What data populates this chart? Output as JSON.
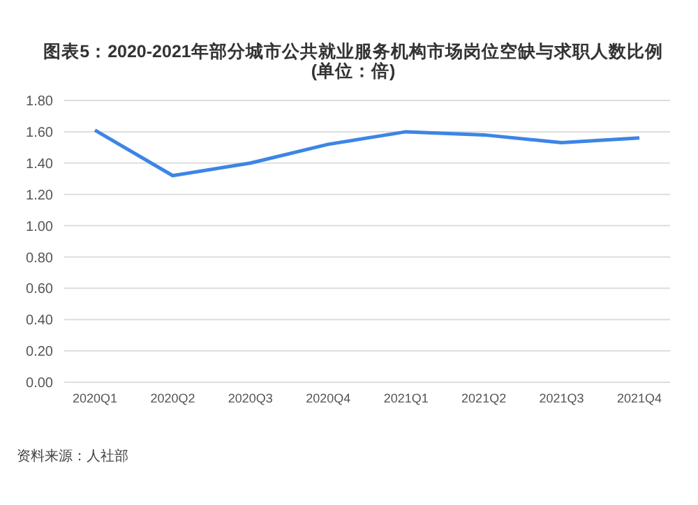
{
  "chart_data": {
    "type": "line",
    "title": "图表5：2020-2021年部分城市公共就业服务机构市场岗位空缺与求职人数比例(单位：倍)",
    "categories": [
      "2020Q1",
      "2020Q2",
      "2020Q3",
      "2020Q4",
      "2021Q1",
      "2021Q2",
      "2021Q3",
      "2021Q4"
    ],
    "series": [
      {
        "color": "#3d85e6",
        "values": [
          1.61,
          1.32,
          1.4,
          1.52,
          1.6,
          1.58,
          1.53,
          1.56
        ]
      }
    ],
    "ylim": [
      0,
      1.8
    ],
    "yticks": [
      {
        "value": 0,
        "label": "0.00"
      },
      {
        "value": 0.2,
        "label": "0.20"
      },
      {
        "value": 0.4,
        "label": "0.40"
      },
      {
        "value": 0.6,
        "label": "0.60"
      },
      {
        "value": 0.8,
        "label": "0.80"
      },
      {
        "value": 1,
        "label": "1.00"
      },
      {
        "value": 1.2,
        "label": "1.20"
      },
      {
        "value": 1.4,
        "label": "1.40"
      },
      {
        "value": 1.6,
        "label": "1.60"
      },
      {
        "value": 1.8,
        "label": "1.80"
      }
    ],
    "grid": "y",
    "legend": false,
    "marker": "none",
    "line_style": "solid",
    "annotations": [
      "资料来源：人社部"
    ]
  }
}
